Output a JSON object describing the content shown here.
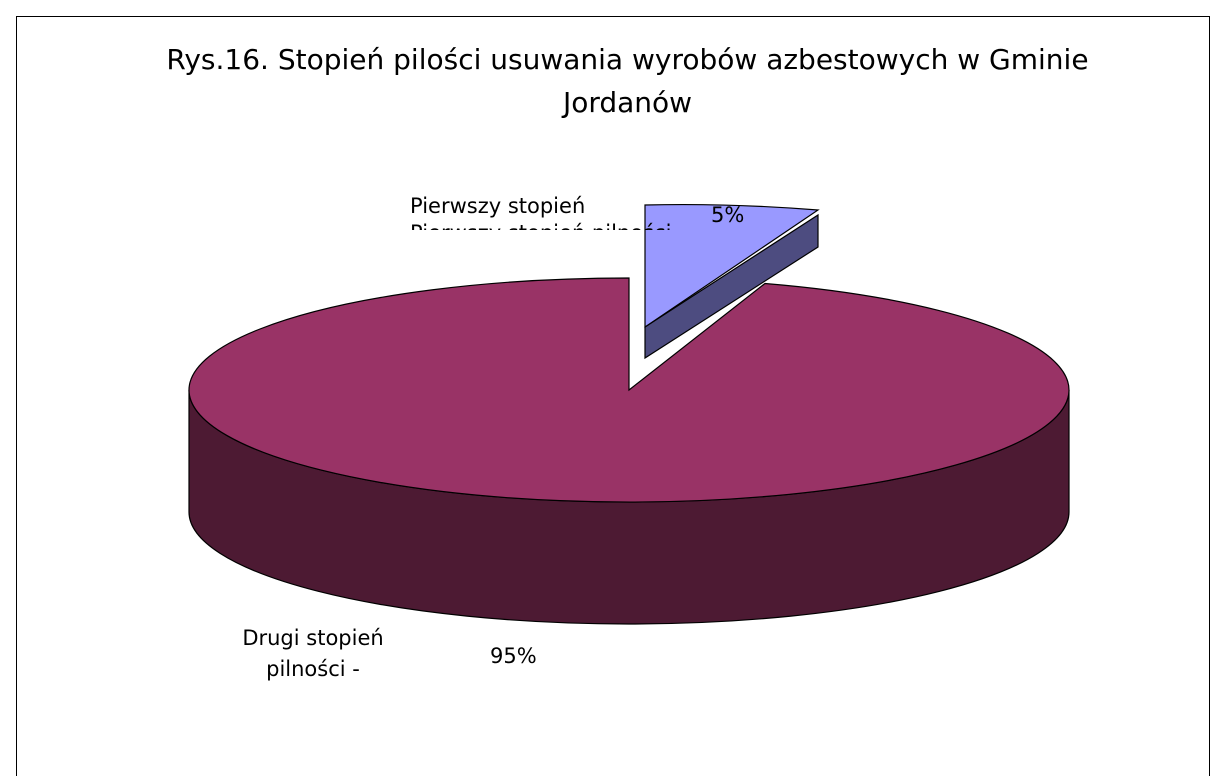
{
  "chart_data": {
    "type": "pie",
    "title": "Rys.16. Stopień pilości usuwania wyrobów azbestowych w Gminie Jordanów",
    "title_lines": [
      "Rys.16. Stopień pilości usuwania wyrobów azbestowych w Gminie",
      "Jordanów"
    ],
    "three_d": true,
    "slices": [
      {
        "name": "Pierwszy stopień pilności",
        "label_visible_lines": [
          "Pierwszy stopień"
        ],
        "value": 5,
        "value_label": "5%",
        "exploded": true,
        "color_top": "#9999ff",
        "color_side": "#4d4c80"
      },
      {
        "name": "Drugi stopień pilności -",
        "label_visible_lines": [
          "Drugi stopień",
          "pilności -"
        ],
        "value": 95,
        "value_label": "95%",
        "exploded": false,
        "color_top": "#993366",
        "color_side": "#4d1a33"
      }
    ],
    "legend": "none"
  }
}
